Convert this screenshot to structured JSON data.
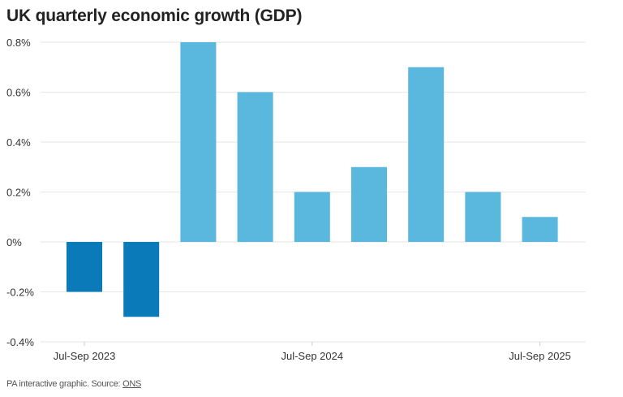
{
  "chart_data": {
    "type": "bar",
    "title": "UK quarterly economic growth (GDP)",
    "xlabel": "",
    "ylabel": "",
    "values": [
      -0.2,
      -0.3,
      0.8,
      0.6,
      0.2,
      0.3,
      0.7,
      0.2,
      0.1
    ],
    "x_ticks": [
      {
        "index": 0,
        "label": "Jul-Sep 2023"
      },
      {
        "index": 4,
        "label": "Jul-Sep 2024"
      },
      {
        "index": 8,
        "label": "Jul-Sep 2025"
      }
    ],
    "y_ticks": [
      {
        "value": 0.8,
        "label": "0.8%"
      },
      {
        "value": 0.6,
        "label": "0.6%"
      },
      {
        "value": 0.4,
        "label": "0.4%"
      },
      {
        "value": 0.2,
        "label": "0.2%"
      },
      {
        "value": 0,
        "label": "0%"
      },
      {
        "value": -0.2,
        "label": "-0.2%"
      },
      {
        "value": -0.4,
        "label": "-0.4%"
      }
    ],
    "ylim": [
      -0.4,
      0.8
    ],
    "grid": true,
    "colors": {
      "positive": "#5ab7de",
      "negative": "#0a7ab8",
      "grid": "#e6e6e6"
    }
  },
  "footer": {
    "text": "PA interactive graphic. Source: ",
    "source_link": "ONS"
  }
}
